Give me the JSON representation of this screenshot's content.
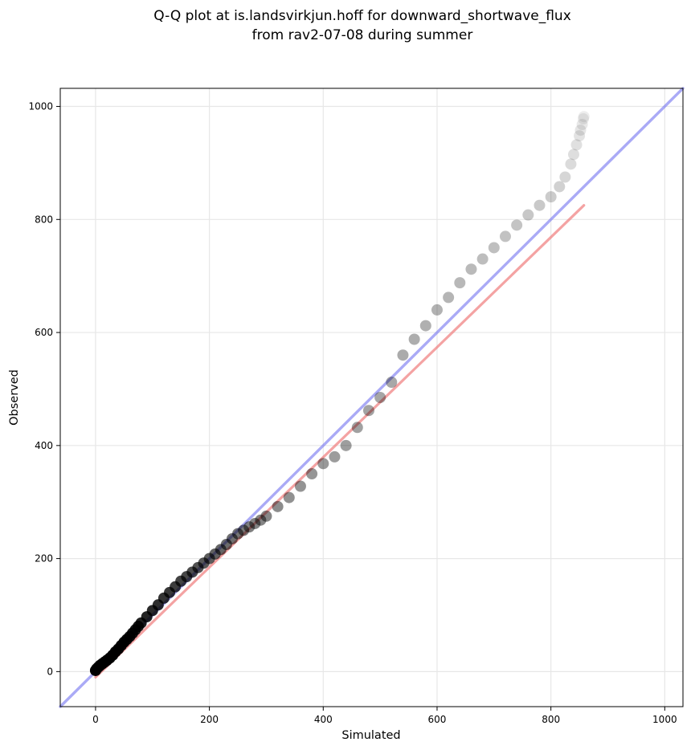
{
  "chart_data": {
    "type": "scatter",
    "title": "Q-Q plot at is.landsvirkjun.hoff for downward_shortwave_flux",
    "subtitle": "from rav2-07-08 during summer",
    "xlabel": "Simulated",
    "ylabel": "Observed",
    "xlim": [
      -62,
      1032
    ],
    "ylim": [
      -62,
      1032
    ],
    "xticks": [
      0,
      200,
      400,
      600,
      800,
      1000
    ],
    "yticks": [
      0,
      200,
      400,
      600,
      800,
      1000
    ],
    "grid": true,
    "point_color": "#000000",
    "identity_line_color": "#6e6ef0",
    "fit_line_color": "#f08080",
    "identity_line": {
      "x": [
        -62,
        1032
      ],
      "y": [
        -62,
        1032
      ]
    },
    "fit_line": {
      "x": [
        0,
        858
      ],
      "y": [
        -10,
        825
      ]
    },
    "qq_points": {
      "x": [
        0,
        2,
        5,
        8,
        12,
        16,
        20,
        25,
        30,
        35,
        40,
        45,
        50,
        55,
        60,
        65,
        70,
        75,
        80,
        90,
        100,
        110,
        120,
        130,
        140,
        150,
        160,
        170,
        180,
        190,
        200,
        210,
        220,
        230,
        240,
        250,
        260,
        270,
        280,
        290,
        300,
        320,
        340,
        360,
        380,
        400,
        420,
        440,
        460,
        480,
        500,
        520,
        540,
        560,
        580,
        600,
        620,
        640,
        660,
        680,
        700,
        720,
        740,
        760,
        780,
        800,
        815,
        825,
        835,
        840,
        845,
        850,
        852,
        855,
        857,
        858
      ],
      "y": [
        2,
        5,
        8,
        11,
        14,
        17,
        20,
        24,
        29,
        35,
        40,
        46,
        52,
        57,
        62,
        68,
        74,
        80,
        86,
        97,
        108,
        118,
        130,
        140,
        150,
        160,
        168,
        176,
        184,
        192,
        200,
        208,
        216,
        225,
        235,
        244,
        250,
        256,
        262,
        268,
        275,
        292,
        308,
        328,
        350,
        368,
        380,
        400,
        432,
        462,
        485,
        512,
        560,
        588,
        612,
        640,
        662,
        688,
        712,
        730,
        750,
        770,
        790,
        808,
        825,
        840,
        858,
        875,
        898,
        915,
        932,
        948,
        958,
        968,
        978,
        982
      ],
      "alpha": [
        1,
        1,
        1,
        1,
        1,
        1,
        1,
        1,
        0.98,
        0.97,
        0.96,
        0.95,
        0.94,
        0.93,
        0.92,
        0.91,
        0.9,
        0.89,
        0.88,
        0.86,
        0.84,
        0.82,
        0.8,
        0.78,
        0.76,
        0.74,
        0.72,
        0.7,
        0.68,
        0.66,
        0.64,
        0.62,
        0.6,
        0.58,
        0.56,
        0.54,
        0.52,
        0.5,
        0.49,
        0.48,
        0.47,
        0.45,
        0.43,
        0.42,
        0.41,
        0.4,
        0.39,
        0.38,
        0.37,
        0.36,
        0.35,
        0.34,
        0.33,
        0.32,
        0.31,
        0.3,
        0.29,
        0.28,
        0.27,
        0.26,
        0.25,
        0.24,
        0.23,
        0.22,
        0.21,
        0.2,
        0.18,
        0.16,
        0.14,
        0.13,
        0.12,
        0.11,
        0.1,
        0.09,
        0.08,
        0.07
      ]
    }
  }
}
